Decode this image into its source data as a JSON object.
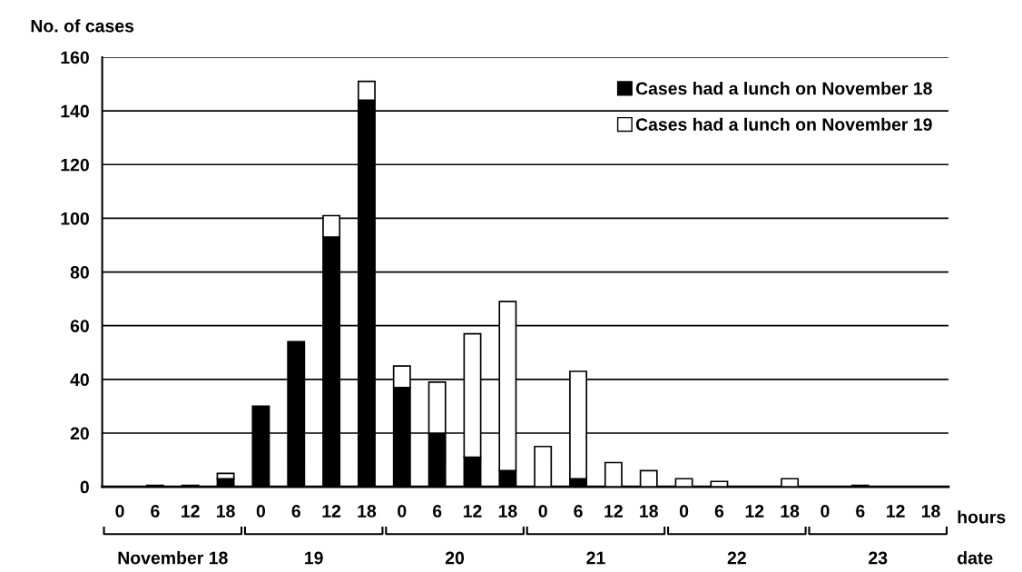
{
  "chart_data": {
    "type": "bar",
    "stacked": true,
    "ylabel": "No. of cases",
    "xlabel": "hours",
    "categories": [
      "0",
      "6",
      "12",
      "18",
      "0",
      "6",
      "12",
      "18",
      "0",
      "6",
      "12",
      "18",
      "0",
      "6",
      "12",
      "18",
      "0",
      "6",
      "12",
      "18",
      "0",
      "6",
      "12",
      "18"
    ],
    "series": [
      {
        "name": "Cases had a lunch on November 18",
        "color": "#000000",
        "values": [
          0,
          0.5,
          0.5,
          3,
          30,
          54,
          93,
          144,
          37,
          20,
          11,
          6,
          0,
          3,
          0,
          0,
          0,
          0,
          0,
          0,
          0,
          0.5,
          0,
          0
        ]
      },
      {
        "name": "Cases had a lunch on November 19",
        "color": "#ffffff",
        "values": [
          0,
          0,
          0,
          2,
          0,
          0,
          8,
          7,
          8,
          19,
          46,
          63,
          15,
          40,
          9,
          6,
          3,
          2,
          0,
          3,
          0,
          0,
          0,
          0
        ]
      }
    ],
    "ylim": [
      0,
      160
    ],
    "yticks": [
      0,
      20,
      40,
      60,
      80,
      100,
      120,
      140,
      160
    ],
    "grid": "y",
    "legend": "top right",
    "annotations": [
      "November 18",
      "19",
      "20",
      "21",
      "22",
      "23",
      "date"
    ]
  }
}
